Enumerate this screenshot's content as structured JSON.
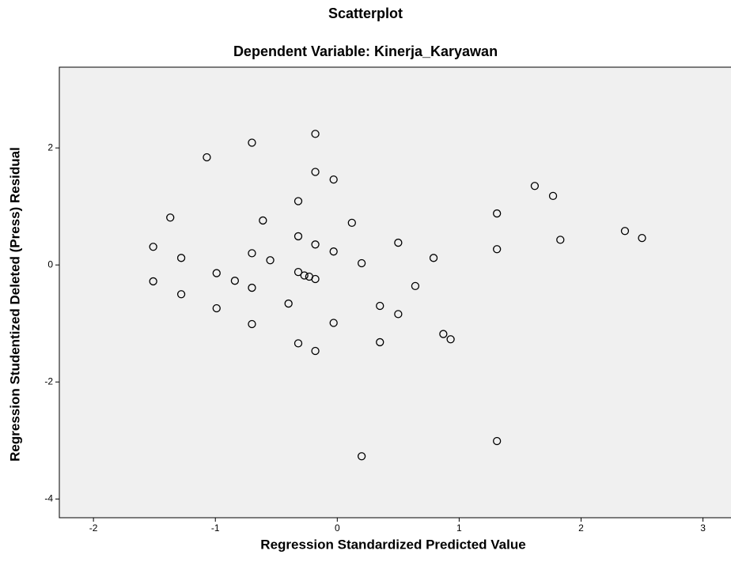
{
  "chart_data": {
    "type": "scatter",
    "title": "Scatterplot",
    "subtitle": "Dependent Variable: Kinerja_Karyawan",
    "x_label": "Regression Standardized Predicted Value",
    "y_label": "Regression Studentized Deleted (Press) Residual",
    "x": [
      -1.51,
      -1.51,
      -1.28,
      -1.28,
      -1.37,
      -1.07,
      -0.99,
      -0.99,
      -0.84,
      -0.7,
      -0.7,
      -0.7,
      -0.7,
      -0.61,
      -0.55,
      -0.4,
      -0.32,
      -0.32,
      -0.32,
      -0.32,
      -0.27,
      -0.23,
      -0.18,
      -0.18,
      -0.18,
      -0.18,
      -0.18,
      -0.03,
      -0.03,
      -0.03,
      0.12,
      0.2,
      0.2,
      0.35,
      0.35,
      0.5,
      0.5,
      0.64,
      0.79,
      0.87,
      0.93,
      1.31,
      1.31,
      1.31,
      1.62,
      1.77,
      1.83,
      2.36,
      2.5
    ],
    "values": [
      0.31,
      -0.28,
      0.12,
      -0.5,
      0.81,
      1.84,
      -0.14,
      -0.74,
      -0.27,
      2.09,
      0.2,
      -0.39,
      -1.01,
      0.76,
      0.08,
      -0.66,
      1.09,
      0.49,
      -0.12,
      -1.34,
      -0.18,
      -0.2,
      2.24,
      1.59,
      0.35,
      -0.24,
      -1.47,
      1.46,
      0.23,
      -0.99,
      0.72,
      0.03,
      -3.27,
      -0.7,
      -1.32,
      0.38,
      -0.84,
      -0.36,
      0.12,
      -1.18,
      -1.27,
      0.88,
      0.27,
      -3.01,
      1.35,
      1.18,
      0.43,
      0.58,
      0.46
    ],
    "color": "#000000",
    "xlim": [
      -2.28,
      3.23
    ],
    "ylim": [
      -4.32,
      3.38
    ],
    "xticks": [
      -2,
      -1,
      0,
      1,
      2,
      3
    ],
    "yticks": [
      -4,
      -2,
      0,
      2
    ]
  }
}
